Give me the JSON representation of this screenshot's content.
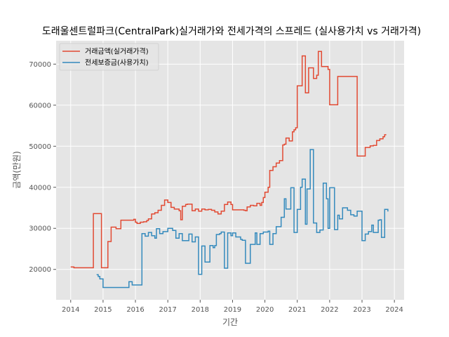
{
  "chart_data": {
    "type": "line",
    "step": true,
    "title": "도래울센트럴파크(CentralPark)실거래가와 전세가격의 스프레드 (실사용가치 vs 거래가격)",
    "xlabel": "기간",
    "ylabel": "금액(만원)",
    "xlim": [
      2013.55,
      2024.3
    ],
    "ylim": [
      12600,
      75700
    ],
    "x_ticks": [
      2014,
      2015,
      2016,
      2017,
      2018,
      2019,
      2020,
      2021,
      2022,
      2023,
      2024
    ],
    "y_ticks": [
      20000,
      30000,
      40000,
      50000,
      60000,
      70000
    ],
    "grid": true,
    "legend_position": "top-left",
    "background": "#e5e5e5",
    "series": [
      {
        "name": "거래금액(실거래가격)",
        "color": "#E24A33",
        "x": [
          2014.0,
          2014.1,
          2014.45,
          2014.7,
          2014.95,
          2015.0,
          2015.15,
          2015.2,
          2015.25,
          2015.4,
          2015.55,
          2015.9,
          2015.95,
          2016.0,
          2016.05,
          2016.15,
          2016.25,
          2016.35,
          2016.4,
          2016.5,
          2016.6,
          2016.7,
          2016.8,
          2016.9,
          2017.0,
          2017.1,
          2017.2,
          2017.35,
          2017.4,
          2017.45,
          2017.55,
          2017.6,
          2017.75,
          2017.85,
          2017.95,
          2018.05,
          2018.15,
          2018.25,
          2018.35,
          2018.45,
          2018.55,
          2018.65,
          2018.75,
          2018.85,
          2018.95,
          2019.0,
          2019.35,
          2019.4,
          2019.45,
          2019.55,
          2019.65,
          2019.75,
          2019.85,
          2019.9,
          2019.95,
          2020.0,
          2020.1,
          2020.15,
          2020.25,
          2020.35,
          2020.45,
          2020.55,
          2020.6,
          2020.65,
          2020.75,
          2020.85,
          2020.9,
          2020.95,
          2021.0,
          2021.15,
          2021.25,
          2021.35,
          2021.5,
          2021.6,
          2021.65,
          2021.75,
          2021.95,
          2022.0,
          2022.25,
          2022.85,
          2023.1,
          2023.25,
          2023.35,
          2023.45,
          2023.55,
          2023.6,
          2023.65,
          2023.7,
          2023.75
        ],
        "values": [
          20600,
          20400,
          20400,
          33600,
          20400,
          20400,
          26800,
          26800,
          30300,
          29900,
          32000,
          32000,
          32200,
          31500,
          31200,
          31500,
          31600,
          31900,
          32300,
          33500,
          33800,
          34400,
          35600,
          36900,
          36300,
          35100,
          34700,
          34300,
          32100,
          35400,
          35800,
          35900,
          34300,
          34700,
          34200,
          34700,
          34500,
          34600,
          34400,
          34000,
          33500,
          34200,
          35800,
          36400,
          35800,
          34500,
          34400,
          34300,
          35200,
          35600,
          35500,
          36100,
          35600,
          36300,
          37500,
          38800,
          40000,
          44100,
          45000,
          45900,
          46500,
          50300,
          50500,
          52000,
          51300,
          53500,
          54000,
          54500,
          64700,
          72000,
          63000,
          69100,
          66500,
          67300,
          73100,
          69400,
          68700,
          60100,
          67000,
          47600,
          49700,
          50100,
          50200,
          51400,
          51800,
          51800,
          52300,
          52800,
          52800
        ]
      },
      {
        "name": "전세보증금(사용가치)",
        "color": "#348ABD",
        "x": [
          2014.8,
          2014.85,
          2014.9,
          2015.0,
          2015.7,
          2015.8,
          2015.9,
          2016.1,
          2016.2,
          2016.3,
          2016.4,
          2016.5,
          2016.6,
          2016.65,
          2016.75,
          2016.85,
          2017.0,
          2017.15,
          2017.25,
          2017.35,
          2017.45,
          2017.65,
          2017.75,
          2017.85,
          2017.95,
          2018.05,
          2018.15,
          2018.3,
          2018.4,
          2018.45,
          2018.5,
          2018.6,
          2018.65,
          2018.75,
          2018.85,
          2018.95,
          2019.0,
          2019.1,
          2019.25,
          2019.3,
          2019.4,
          2019.55,
          2019.7,
          2019.75,
          2019.85,
          2019.95,
          2020.0,
          2020.1,
          2020.15,
          2020.25,
          2020.35,
          2020.5,
          2020.6,
          2020.65,
          2020.8,
          2020.9,
          2021.0,
          2021.1,
          2021.15,
          2021.25,
          2021.3,
          2021.4,
          2021.5,
          2021.6,
          2021.7,
          2021.8,
          2021.9,
          2021.95,
          2022.0,
          2022.15,
          2022.25,
          2022.3,
          2022.4,
          2022.55,
          2022.65,
          2022.75,
          2022.85,
          2023.0,
          2023.1,
          2023.2,
          2023.3,
          2023.35,
          2023.5,
          2023.55,
          2023.6,
          2023.7,
          2023.8
        ],
        "values": [
          18700,
          18300,
          17700,
          15600,
          15600,
          17000,
          16200,
          16200,
          28700,
          28100,
          29000,
          28200,
          27600,
          29900,
          28700,
          29200,
          30000,
          29500,
          27600,
          28700,
          27000,
          28600,
          26700,
          27900,
          18800,
          25700,
          21800,
          25800,
          25300,
          25800,
          28500,
          28700,
          29100,
          20300,
          28900,
          28200,
          28900,
          27900,
          27300,
          27100,
          21500,
          26100,
          28900,
          26100,
          28700,
          29100,
          29100,
          29300,
          26100,
          28700,
          30400,
          32700,
          37200,
          34700,
          39900,
          29000,
          34600,
          40000,
          42000,
          31000,
          39600,
          49200,
          31300,
          29000,
          29600,
          41000,
          37200,
          30000,
          39900,
          29700,
          33200,
          32300,
          35000,
          34400,
          33300,
          33000,
          34200,
          27000,
          28600,
          29200,
          30800,
          29000,
          32000,
          32100,
          27800,
          34600,
          34100
        ]
      }
    ]
  }
}
